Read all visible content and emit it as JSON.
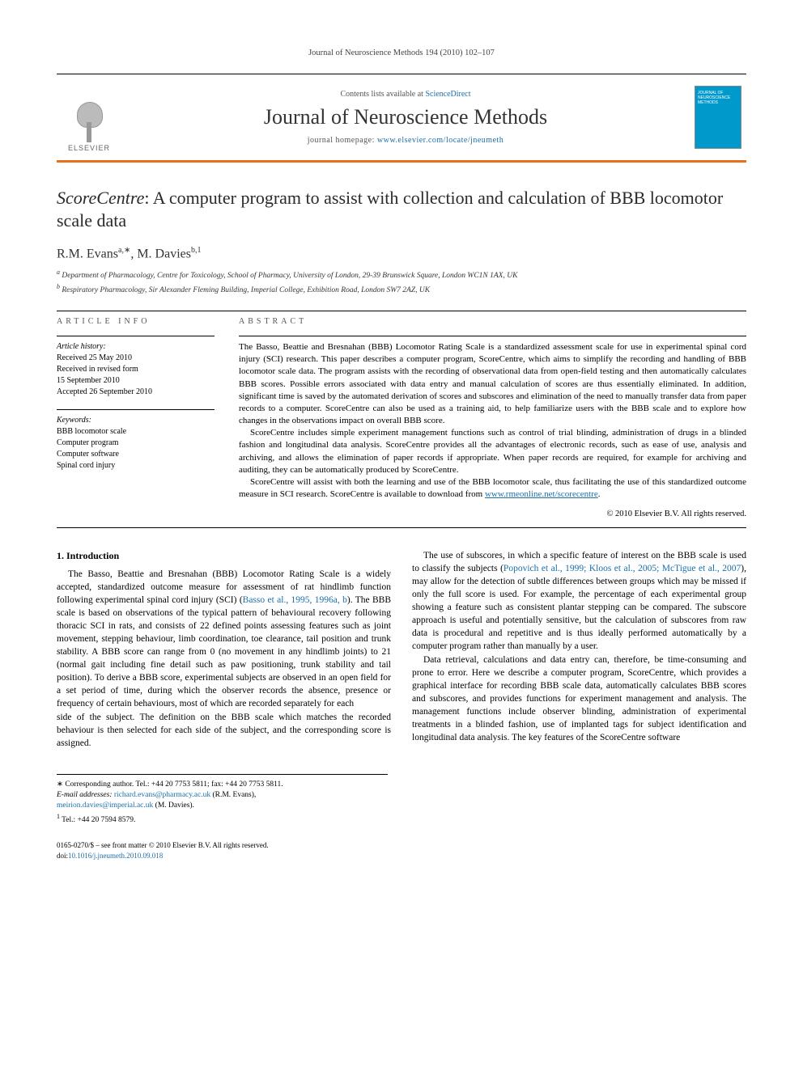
{
  "running_header": "Journal of Neuroscience Methods 194 (2010) 102–107",
  "masthead": {
    "contents_prefix": "Contents lists available at ",
    "contents_link": "ScienceDirect",
    "journal_name": "Journal of Neuroscience Methods",
    "homepage_prefix": "journal homepage: ",
    "homepage_url": "www.elsevier.com/locate/jneumeth",
    "publisher_label": "ELSEVIER",
    "cover_text_1": "JOURNAL OF",
    "cover_text_2": "NEUROSCIENCE",
    "cover_text_3": "METHODS"
  },
  "title_italic": "ScoreCentre",
  "title_rest": ": A computer program to assist with collection and calculation of BBB locomotor scale data",
  "authors_line_parts": {
    "a1": "R.M. Evans",
    "a1_sup": "a,∗",
    "sep": ", ",
    "a2": "M. Davies",
    "a2_sup": "b,1"
  },
  "affiliations": {
    "a": "Department of Pharmacology, Centre for Toxicology, School of Pharmacy, University of London, 29-39 Brunswick Square, London WC1N 1AX, UK",
    "b": "Respiratory Pharmacology, Sir Alexander Fleming Building, Imperial College, Exhibition Road, London SW7 2AZ, UK"
  },
  "article_info": {
    "heading": "article info",
    "history_label": "Article history:",
    "received": "Received 25 May 2010",
    "revised": "Received in revised form",
    "revised_date": "15 September 2010",
    "accepted": "Accepted 26 September 2010",
    "keywords_label": "Keywords:",
    "keywords": [
      "BBB locomotor scale",
      "Computer program",
      "Computer software",
      "Spinal cord injury"
    ]
  },
  "abstract": {
    "heading": "abstract",
    "p1": "The Basso, Beattie and Bresnahan (BBB) Locomotor Rating Scale is a standardized assessment scale for use in experimental spinal cord injury (SCI) research. This paper describes a computer program, ScoreCentre, which aims to simplify the recording and handling of BBB locomotor scale data. The program assists with the recording of observational data from open-field testing and then automatically calculates BBB scores. Possible errors associated with data entry and manual calculation of scores are thus essentially eliminated. In addition, significant time is saved by the automated derivation of scores and subscores and elimination of the need to manually transfer data from paper records to a computer. ScoreCentre can also be used as a training aid, to help familiarize users with the BBB scale and to explore how changes in the observations impact on overall BBB score.",
    "p2": "ScoreCentre includes simple experiment management functions such as control of trial blinding, administration of drugs in a blinded fashion and longitudinal data analysis. ScoreCentre provides all the advantages of electronic records, such as ease of use, analysis and archiving, and allows the elimination of paper records if appropriate. When paper records are required, for example for archiving and auditing, they can be automatically produced by ScoreCentre.",
    "p3": "ScoreCentre will assist with both the learning and use of the BBB locomotor scale, thus facilitating the use of this standardized outcome measure in SCI research. ScoreCentre is available to download from ",
    "p3_link": "www.rmeonline.net/scorecentre",
    "p3_end": ".",
    "copyright": "© 2010 Elsevier B.V. All rights reserved."
  },
  "body": {
    "sec1_heading": "1. Introduction",
    "p1a": "The Basso, Beattie and Bresnahan (BBB) Locomotor Rating Scale is a widely accepted, standardized outcome measure for assessment of rat hindlimb function following experimental spinal cord injury (SCI) (",
    "p1_cite1": "Basso et al., 1995, 1996a, b",
    "p1b": "). The BBB scale is based on observations of the typical pattern of behavioural recovery following thoracic SCI in rats, and consists of 22 defined points assessing features such as joint movement, stepping behaviour, limb coordination, toe clearance, tail position and trunk stability. A BBB score can range from 0 (no movement in any hindlimb joints) to 21 (normal gait including fine detail such as paw positioning, trunk stability and tail position). To derive a BBB score, experimental subjects are observed in an open field for a set period of time, during which the observer records the absence, presence or frequency of certain behaviours, most of which are recorded separately for each",
    "p2": "side of the subject. The definition on the BBB scale which matches the recorded behaviour is then selected for each side of the subject, and the corresponding score is assigned.",
    "p3a": "The use of subscores, in which a specific feature of interest on the BBB scale is used to classify the subjects (",
    "p3_cite1": "Popovich et al., 1999; Kloos et al., 2005; McTigue et al., 2007",
    "p3b": "), may allow for the detection of subtle differences between groups which may be missed if only the full score is used. For example, the percentage of each experimental group showing a feature such as consistent plantar stepping can be compared. The subscore approach is useful and potentially sensitive, but the calculation of subscores from raw data is procedural and repetitive and is thus ideally performed automatically by a computer program rather than manually by a user.",
    "p4": "Data retrieval, calculations and data entry can, therefore, be time-consuming and prone to error. Here we describe a computer program, ScoreCentre, which provides a graphical interface for recording BBB scale data, automatically calculates BBB scores and subscores, and provides functions for experiment management and analysis. The management functions include observer blinding, administration of experimental treatments in a blinded fashion, use of implanted tags for subject identification and longitudinal data analysis. The key features of the ScoreCentre software"
  },
  "footnotes": {
    "corr": "∗ Corresponding author. Tel.: +44 20 7753 5811; fax: +44 20 7753 5811.",
    "email_label": "E-mail addresses: ",
    "email1": "richard.evans@pharmacy.ac.uk",
    "email1_who": " (R.M. Evans),",
    "email2": "meirion.davies@imperial.ac.uk",
    "email2_who": " (M. Davies).",
    "fn1": "Tel.: +44 20 7594 8579.",
    "issn": "0165-0270/$ – see front matter © 2010 Elsevier B.V. All rights reserved.",
    "doi_label": "doi:",
    "doi": "10.1016/j.jneumeth.2010.09.018"
  },
  "colors": {
    "accent_orange": "#e9711c",
    "link_blue": "#1b6faa",
    "cover_blue": "#0099cc"
  }
}
